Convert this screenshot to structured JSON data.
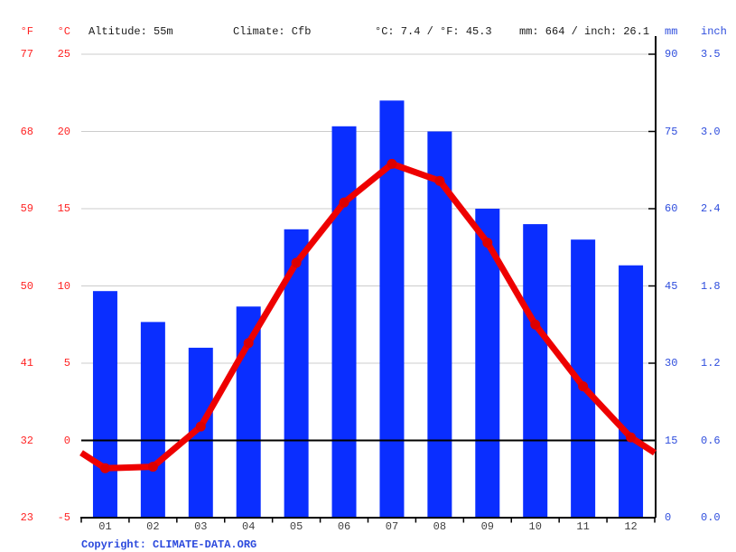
{
  "header": {
    "fahrenheit_label": "°F",
    "celsius_label": "°C",
    "altitude": "Altitude: 55m",
    "climate": "Climate: Cfb",
    "temp_summary": "°C: 7.4 / °F: 45.3",
    "precip_summary": "mm: 664 / inch: 26.1",
    "mm_label": "mm",
    "inch_label": "inch"
  },
  "footer": {
    "copyright_prefix": "Copyright:",
    "copyright_link": "CLIMATE-DATA.ORG"
  },
  "colors": {
    "bar_blue": "#0a2eff",
    "line_red": "#ee0000",
    "dot_red": "#dd0000",
    "red_label": "#ff2222",
    "blue_label": "#2e4ddd",
    "month_label": "#404040",
    "grid_gray": "#cccccc",
    "axis_black": "#000000"
  },
  "chart_data": {
    "type": "bar",
    "title": "",
    "categories": [
      "01",
      "02",
      "03",
      "04",
      "05",
      "06",
      "07",
      "08",
      "09",
      "10",
      "11",
      "12"
    ],
    "series": [
      {
        "name": "precipitation_mm",
        "type": "bar",
        "values": [
          44,
          38,
          33,
          41,
          56,
          76,
          81,
          75,
          60,
          57,
          54,
          49
        ]
      },
      {
        "name": "temperature_c",
        "type": "line",
        "values": [
          -1.8,
          -1.7,
          0.9,
          6.3,
          11.5,
          15.4,
          17.9,
          16.8,
          12.8,
          7.5,
          3.5,
          0.2
        ]
      }
    ],
    "axes": {
      "left_fahrenheit_ticks": [
        "77",
        "68",
        "59",
        "50",
        "41",
        "32",
        "23"
      ],
      "left_celsius_ticks": [
        "25",
        "20",
        "15",
        "10",
        "5",
        "0",
        "-5"
      ],
      "right_mm_ticks": [
        "90",
        "75",
        "60",
        "45",
        "30",
        "15",
        "0"
      ],
      "right_inch_ticks": [
        "3.5",
        "3.0",
        "2.4",
        "1.8",
        "1.2",
        "0.6",
        "0.0"
      ]
    },
    "ylim_celsius": [
      -5,
      25
    ],
    "ylim_mm": [
      0,
      90
    ],
    "grid": true,
    "zero_line_celsius": 0,
    "legend": "none"
  }
}
